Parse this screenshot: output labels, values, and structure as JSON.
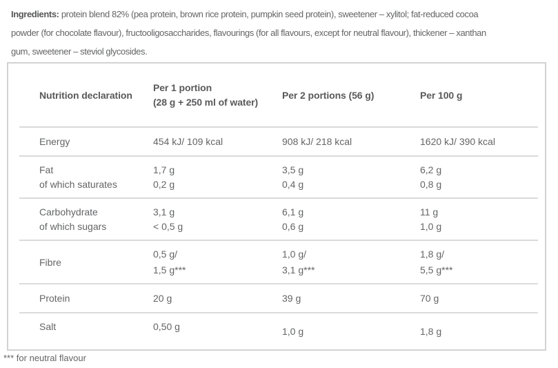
{
  "colors": {
    "background": "#ffffff",
    "text_heading": "#58595b",
    "text_body": "#636466",
    "divider": "#dadada",
    "table_border": "#d2d2d2"
  },
  "ingredients": {
    "label": "Ingredients:",
    "line1_rest": " protein blend 82% (pea protein, brown rice protein, pumpkin seed protein), sweetener – xylitol; fat-reduced cocoa",
    "line2": "powder (for chocolate flavour), fructooligosaccharides, flavourings (for all flavours, except for neutral flavour), thickener – xanthan",
    "line3": "gum, sweetener – steviol glycosides."
  },
  "table": {
    "header": {
      "col1": "Nutrition declaration",
      "col2_line1": "Per 1 portion",
      "col2_line2": "(28 g + 250 ml of water)",
      "col3": "Per 2 portions (56 g)",
      "col4": "Per 100 g"
    },
    "rows": [
      {
        "name": "energy",
        "label": "Energy",
        "values": [
          "454 kJ/ 109 kcal",
          "908 kJ/ 218 kcal",
          "1620 kJ/ 390 kcal"
        ]
      },
      {
        "name": "fat",
        "labels": [
          "Fat",
          "of which saturates"
        ],
        "values": [
          [
            "1,7 g",
            "0,2 g"
          ],
          [
            "3,5 g",
            "0,4 g"
          ],
          [
            "6,2 g",
            "0,8 g"
          ]
        ]
      },
      {
        "name": "carbohydrate",
        "labels": [
          "Carbohydrate",
          "of which sugars"
        ],
        "values": [
          [
            "3,1 g",
            "< 0,5 g"
          ],
          [
            "6,1 g",
            "0,6 g"
          ],
          [
            "11 g",
            "1,0 g"
          ]
        ]
      },
      {
        "name": "fibre",
        "label": "Fibre",
        "values": [
          [
            "0,5 g/",
            "1,5 g***"
          ],
          [
            "1,0 g/",
            "3,1 g***"
          ],
          [
            "1,8 g/",
            "5,5 g***"
          ]
        ]
      },
      {
        "name": "protein",
        "label": "Protein",
        "values": [
          "20 g",
          "39 g",
          "70 g"
        ]
      },
      {
        "name": "salt",
        "label": "Salt",
        "values": [
          "0,50 g",
          "1,0 g",
          "1,8 g"
        ]
      }
    ]
  },
  "footnote": "*** for neutral flavour"
}
